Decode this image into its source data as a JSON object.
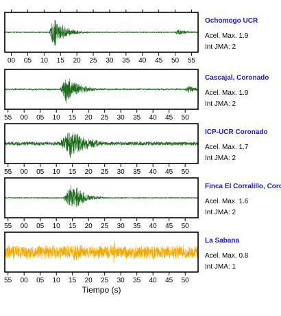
{
  "chart_data": {
    "type": "line",
    "xlabel": "Tiempo (s)",
    "colors": {
      "trace_default": "#1b6b1b",
      "trace_last": "#f5a800",
      "station_name": "#1a1ad6"
    },
    "panels": [
      {
        "station": "Ochomogo UCR",
        "acel_label": "Acel. Max. 1.9",
        "int_label": "Int JMA: 2",
        "tick_labels": [
          "00",
          "05",
          "10",
          "15",
          "20",
          "25",
          "30",
          "35",
          "40",
          "45",
          "50",
          "55"
        ],
        "ticks_on_top": true,
        "first_tick_sec": 0,
        "x_range_sec": [
          -2,
          57
        ],
        "noise": 0.03,
        "bursts": [
          {
            "t0": 11.5,
            "peak": 13.0,
            "decay": 3.5,
            "amp": 0.95
          },
          {
            "t0": 49.5,
            "peak": 51.0,
            "decay": 3.0,
            "amp": 0.22
          }
        ]
      },
      {
        "station": "Cascajal, Coronado",
        "acel_label": "Acel. Max. 1.9",
        "int_label": "Int JMA: 2",
        "tick_labels": [
          "55",
          "00",
          "05",
          "10",
          "15",
          "20",
          "25",
          "30",
          "35",
          "40",
          "45",
          "50"
        ],
        "ticks_on_top": false,
        "first_tick_sec": -5,
        "x_range_sec": [
          -6,
          54
        ],
        "noise": 0.05,
        "bursts": [
          {
            "t0": 11.0,
            "peak": 13.2,
            "decay": 4.0,
            "amp": 0.9
          },
          {
            "t0": 49.5,
            "peak": 51.0,
            "decay": 3.0,
            "amp": 0.22
          }
        ]
      },
      {
        "station": "ICP-UCR Coronado",
        "acel_label": "Acel. Max. 1.7",
        "int_label": "Int JMA: 2",
        "tick_labels": [
          "55",
          "00",
          "05",
          "10",
          "15",
          "20",
          "25",
          "30",
          "35",
          "40",
          "45",
          "50"
        ],
        "ticks_on_top": false,
        "first_tick_sec": -5,
        "x_range_sec": [
          -6,
          54
        ],
        "noise": 0.12,
        "bursts": [
          {
            "t0": 10.5,
            "peak": 14.5,
            "decay": 5.5,
            "amp": 0.95
          }
        ]
      },
      {
        "station": "Finca El Corralillo, Corc",
        "acel_label": "Acel. Max. 1.6",
        "int_label": "Int JMA: 2",
        "tick_labels": [
          "55",
          "00",
          "05",
          "10",
          "15",
          "20",
          "25",
          "30",
          "35",
          "40",
          "45",
          "50"
        ],
        "ticks_on_top": false,
        "first_tick_sec": -5,
        "x_range_sec": [
          -6,
          54
        ],
        "noise": 0.025,
        "bursts": [
          {
            "t0": 12.0,
            "peak": 15.0,
            "decay": 3.5,
            "amp": 0.95
          }
        ]
      },
      {
        "station": "La Sabana",
        "acel_label": "Acel. Max. 0.8",
        "int_label": "Int JMA: 1",
        "tick_labels": [
          "55",
          "00",
          "05",
          "10",
          "15",
          "20",
          "25",
          "30",
          "35",
          "40",
          "45",
          "50"
        ],
        "ticks_on_top": false,
        "first_tick_sec": -5,
        "x_range_sec": [
          -6,
          54
        ],
        "noise": 0.42,
        "bursts": [
          {
            "t0": 12.0,
            "peak": 16.0,
            "decay": 6.0,
            "amp": 0.55
          },
          {
            "t0": 27.6,
            "peak": 27.9,
            "decay": 0.8,
            "amp": 1.0
          }
        ]
      }
    ]
  }
}
